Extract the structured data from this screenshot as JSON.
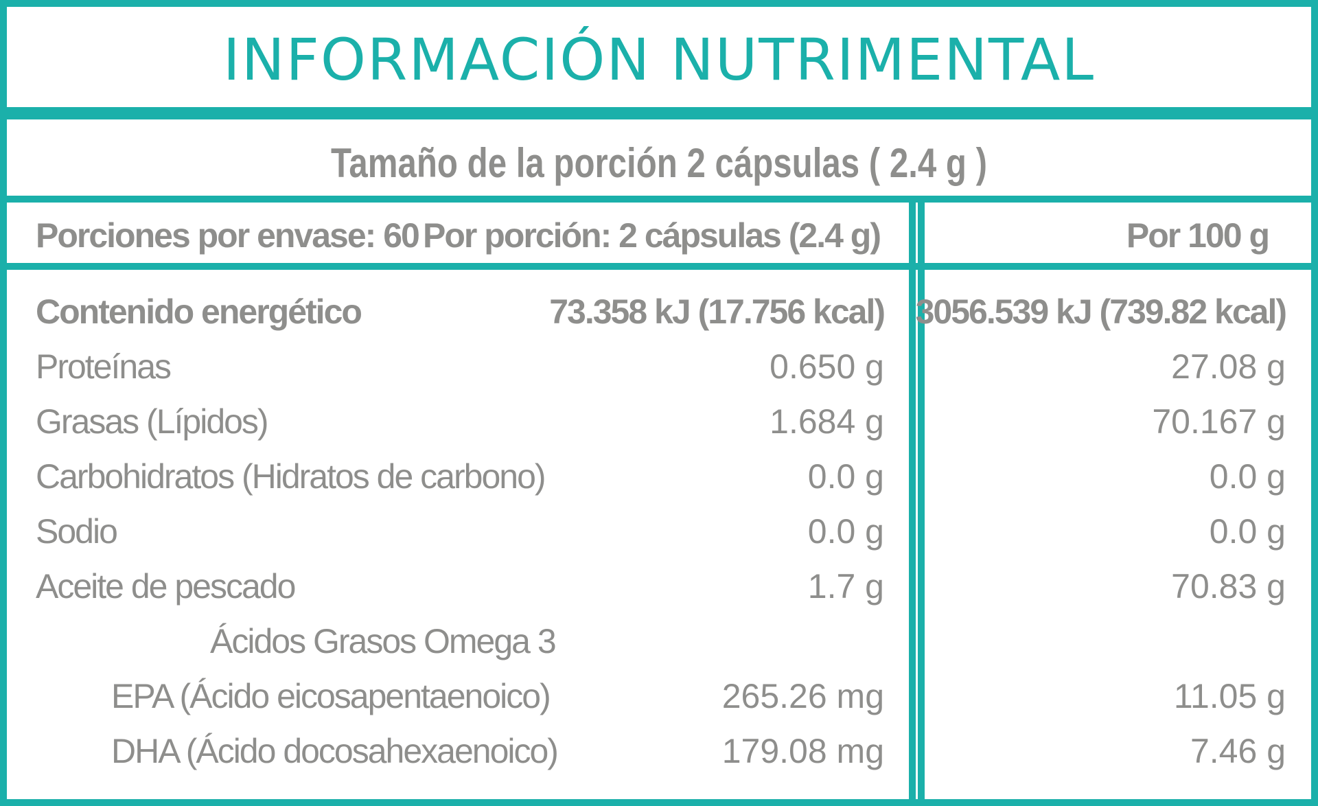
{
  "title": "INFORMACIÓN NUTRIMENTAL",
  "serving_size": "Tamaño de la porción 2 cápsulas ( 2.4 g )",
  "header": {
    "servings_per_container": "Porciones por envase: 60",
    "per_serving": "Por porción: 2 cápsulas (2.4 g)",
    "per_100g": "Por 100 g"
  },
  "rows": [
    {
      "label": "Contenido energético",
      "per_serving": "73.358 kJ (17.756 kcal)",
      "per_100g": "3056.539 kJ (739.82 kcal)"
    },
    {
      "label": "Proteínas",
      "per_serving": "0.650 g",
      "per_100g": "27.08 g"
    },
    {
      "label": "Grasas (Lípidos)",
      "per_serving": "1.684 g",
      "per_100g": "70.167 g"
    },
    {
      "label": "Carbohidratos (Hidratos de carbono)",
      "per_serving": "0.0 g",
      "per_100g": "0.0 g"
    },
    {
      "label": "Sodio",
      "per_serving": "0.0 g",
      "per_100g": "0.0 g"
    },
    {
      "label": "Aceite de pescado",
      "per_serving": "1.7 g",
      "per_100g": "70.83 g"
    },
    {
      "label": "Ácidos Grasos Omega 3",
      "per_serving": "",
      "per_100g": ""
    },
    {
      "label": "EPA (Ácido eicosapentaenoico)",
      "per_serving": "265.26 mg",
      "per_100g": "11.05 g"
    },
    {
      "label": "DHA (Ácido docosahexaenoico)",
      "per_serving": "179.08 mg",
      "per_100g": "7.46 g"
    }
  ],
  "colors": {
    "accent": "#1bb0aa",
    "text": "#8e8e8c"
  }
}
